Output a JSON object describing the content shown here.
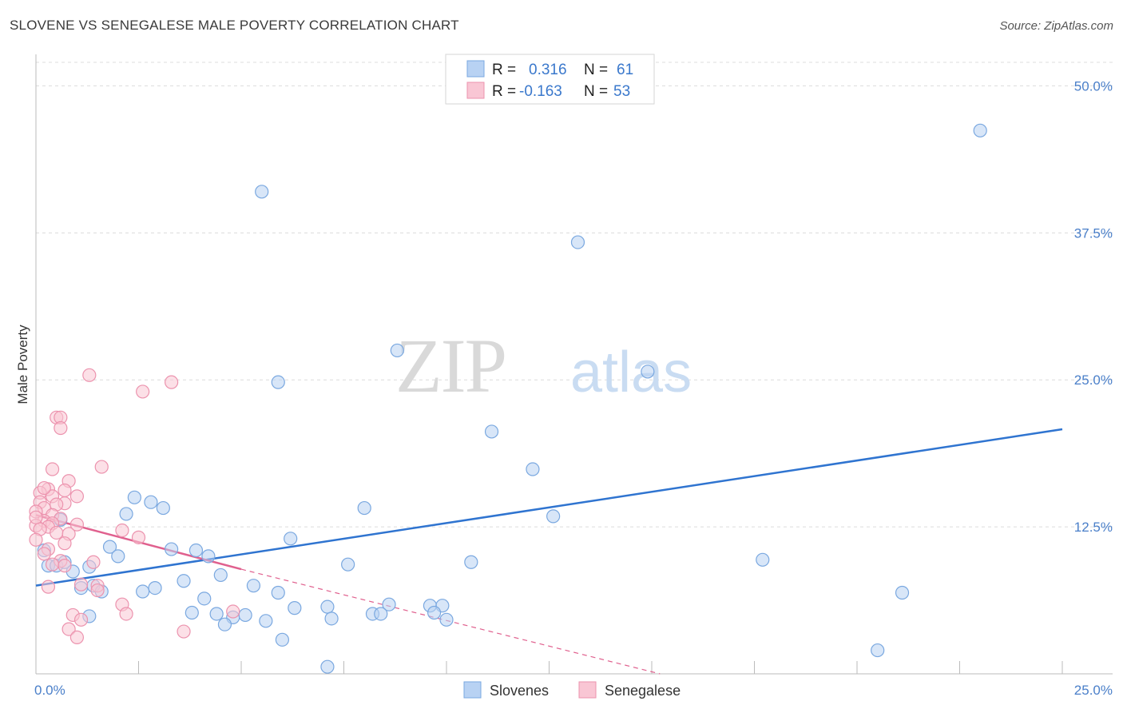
{
  "header": {
    "title": "SLOVENE VS SENEGALESE MALE POVERTY CORRELATION CHART",
    "source": "Source: ZipAtlas.com"
  },
  "watermark": {
    "zip": "ZIP",
    "atlas": "atlas"
  },
  "colors": {
    "blue_fill": "#b8d2f3",
    "blue_stroke": "#7aa8e0",
    "blue_line": "#2f74d0",
    "pink_fill": "#f9c6d4",
    "pink_stroke": "#ec93ae",
    "pink_line": "#e0608e",
    "grid": "#dcdcdc",
    "tick_text": "#4a7fc9"
  },
  "chart_data": {
    "type": "scatter",
    "title": "SLOVENE VS SENEGALESE MALE POVERTY CORRELATION CHART",
    "xlabel": "",
    "ylabel": "Male Poverty",
    "xlim": [
      0,
      25
    ],
    "ylim": [
      0,
      52
    ],
    "x_tick_labels": [
      {
        "value": 0,
        "label": "0.0%"
      },
      {
        "value": 25,
        "label": "25.0%"
      }
    ],
    "y_tick_labels": [
      {
        "value": 12.5,
        "label": "12.5%"
      },
      {
        "value": 25.0,
        "label": "25.0%"
      },
      {
        "value": 37.5,
        "label": "37.5%"
      },
      {
        "value": 50.0,
        "label": "50.0%"
      }
    ],
    "legend": {
      "position": "top-center",
      "rows": [
        {
          "r_label": "R =",
          "r_value": "0.316",
          "n_label": "N =",
          "n_value": "61"
        },
        {
          "r_label": "R =",
          "r_value": "-0.163",
          "n_label": "N =",
          "n_value": "53"
        }
      ]
    },
    "series": [
      {
        "name": "Slovenes",
        "color": "#b8d2f3",
        "trend": {
          "x": [
            0,
            25
          ],
          "y": [
            7.5,
            20.8
          ],
          "style": "solid"
        },
        "points": [
          [
            5.5,
            41.0
          ],
          [
            23.0,
            46.2
          ],
          [
            13.2,
            36.7
          ],
          [
            8.8,
            27.5
          ],
          [
            5.9,
            24.8
          ],
          [
            14.9,
            25.7
          ],
          [
            11.1,
            20.6
          ],
          [
            12.1,
            17.4
          ],
          [
            2.4,
            15.0
          ],
          [
            2.8,
            14.6
          ],
          [
            3.1,
            14.1
          ],
          [
            2.2,
            13.6
          ],
          [
            8.0,
            14.1
          ],
          [
            12.6,
            13.4
          ],
          [
            6.2,
            11.5
          ],
          [
            1.8,
            10.8
          ],
          [
            2.0,
            10.0
          ],
          [
            3.3,
            10.6
          ],
          [
            3.9,
            10.5
          ],
          [
            4.2,
            10.0
          ],
          [
            0.3,
            9.2
          ],
          [
            0.5,
            9.2
          ],
          [
            0.7,
            9.5
          ],
          [
            1.3,
            9.1
          ],
          [
            0.9,
            8.7
          ],
          [
            7.6,
            9.3
          ],
          [
            10.6,
            9.5
          ],
          [
            17.7,
            9.7
          ],
          [
            4.5,
            8.4
          ],
          [
            1.4,
            7.5
          ],
          [
            1.6,
            7.0
          ],
          [
            1.1,
            7.3
          ],
          [
            2.6,
            7.0
          ],
          [
            2.9,
            7.3
          ],
          [
            3.6,
            7.9
          ],
          [
            5.3,
            7.5
          ],
          [
            4.1,
            6.4
          ],
          [
            5.9,
            6.9
          ],
          [
            21.1,
            6.9
          ],
          [
            6.3,
            5.6
          ],
          [
            7.1,
            5.7
          ],
          [
            8.6,
            5.9
          ],
          [
            9.6,
            5.8
          ],
          [
            9.9,
            5.8
          ],
          [
            3.8,
            5.2
          ],
          [
            4.4,
            5.1
          ],
          [
            1.3,
            4.9
          ],
          [
            4.8,
            4.8
          ],
          [
            5.1,
            5.0
          ],
          [
            4.6,
            4.2
          ],
          [
            5.6,
            4.5
          ],
          [
            7.2,
            4.7
          ],
          [
            8.2,
            5.1
          ],
          [
            8.4,
            5.1
          ],
          [
            9.7,
            5.2
          ],
          [
            10.0,
            4.6
          ],
          [
            6.0,
            2.9
          ],
          [
            7.1,
            0.6
          ],
          [
            0.6,
            13.1
          ],
          [
            0.2,
            10.5
          ],
          [
            20.5,
            2.0
          ]
        ]
      },
      {
        "name": "Senegalese",
        "color": "#f9c6d4",
        "trend": {
          "x": [
            0,
            5.0
          ],
          "y": [
            13.5,
            8.9
          ],
          "style": "solid",
          "extension": {
            "x": [
              5.0,
              15.2
            ],
            "y": [
              8.9,
              0.0
            ],
            "style": "dashed"
          }
        },
        "points": [
          [
            1.3,
            25.4
          ],
          [
            2.6,
            24.0
          ],
          [
            3.3,
            24.8
          ],
          [
            0.5,
            21.8
          ],
          [
            0.6,
            21.8
          ],
          [
            0.6,
            20.9
          ],
          [
            1.6,
            17.6
          ],
          [
            0.4,
            17.4
          ],
          [
            0.8,
            16.4
          ],
          [
            0.3,
            15.7
          ],
          [
            0.7,
            15.6
          ],
          [
            0.1,
            15.4
          ],
          [
            0.4,
            15.1
          ],
          [
            1.0,
            15.1
          ],
          [
            0.1,
            14.6
          ],
          [
            0.7,
            14.5
          ],
          [
            0.5,
            14.4
          ],
          [
            0.2,
            14.1
          ],
          [
            0.0,
            13.8
          ],
          [
            0.4,
            13.5
          ],
          [
            0.6,
            13.2
          ],
          [
            0.2,
            13.0
          ],
          [
            0.4,
            12.8
          ],
          [
            0.0,
            12.6
          ],
          [
            0.3,
            12.5
          ],
          [
            0.1,
            12.3
          ],
          [
            0.5,
            12.0
          ],
          [
            2.1,
            12.2
          ],
          [
            0.8,
            11.9
          ],
          [
            2.5,
            11.6
          ],
          [
            0.0,
            11.4
          ],
          [
            0.7,
            11.1
          ],
          [
            0.3,
            10.6
          ],
          [
            0.2,
            10.2
          ],
          [
            1.0,
            12.7
          ],
          [
            0.6,
            9.6
          ],
          [
            0.4,
            9.3
          ],
          [
            1.4,
            9.5
          ],
          [
            0.7,
            9.2
          ],
          [
            0.3,
            7.4
          ],
          [
            1.1,
            7.6
          ],
          [
            1.5,
            7.5
          ],
          [
            1.5,
            7.1
          ],
          [
            2.1,
            5.9
          ],
          [
            2.2,
            5.1
          ],
          [
            0.9,
            5.0
          ],
          [
            1.1,
            4.6
          ],
          [
            4.8,
            5.3
          ],
          [
            0.8,
            3.8
          ],
          [
            1.0,
            3.1
          ],
          [
            3.6,
            3.6
          ],
          [
            0.0,
            13.3
          ],
          [
            0.2,
            15.8
          ]
        ]
      }
    ]
  }
}
